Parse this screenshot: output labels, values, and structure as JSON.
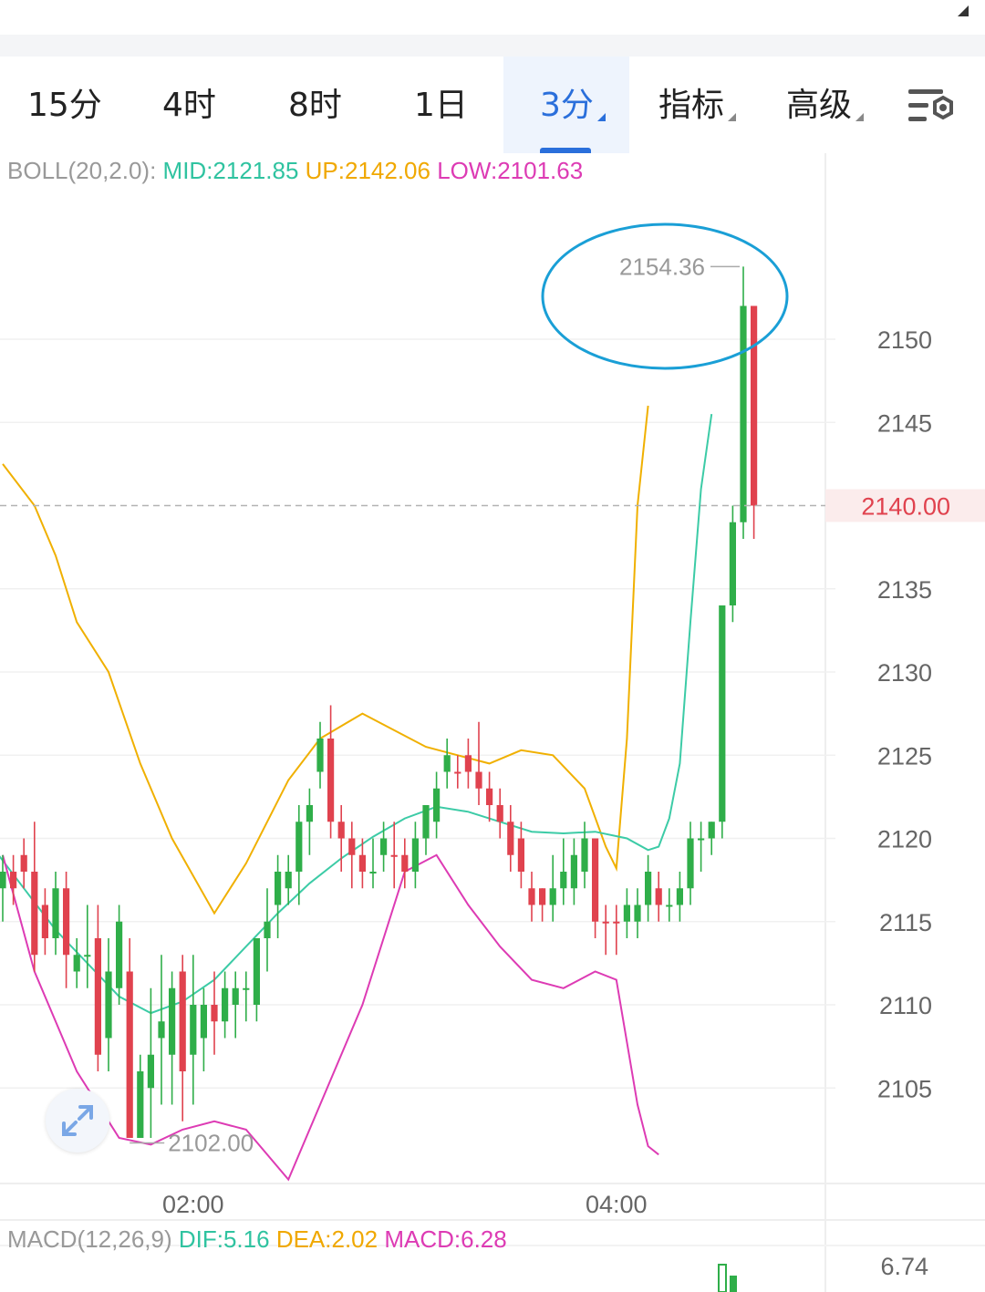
{
  "tabs": [
    {
      "label": "15分",
      "active": false,
      "dropdown": false
    },
    {
      "label": "4时",
      "active": false,
      "dropdown": false
    },
    {
      "label": "8时",
      "active": false,
      "dropdown": false
    },
    {
      "label": "1日",
      "active": false,
      "dropdown": false
    },
    {
      "label": "3分",
      "active": true,
      "dropdown": true
    },
    {
      "label": "指标",
      "active": false,
      "dropdown": true
    },
    {
      "label": "高级",
      "active": false,
      "dropdown": true
    }
  ],
  "boll": {
    "title": "BOLL(20,2.0):",
    "mid": "MID:2121.85",
    "up": "UP:2142.06",
    "low": "LOW:2101.63"
  },
  "macd": {
    "title": "MACD(12,26,9)",
    "dif": "DIF:5.16",
    "dea": "DEA:2.02",
    "macd": "MACD:6.28",
    "axis_label": "6.74"
  },
  "colors": {
    "up": "#2fae49",
    "down": "#e0424e",
    "mid": "#3ccba6",
    "upper": "#f0b000",
    "lower": "#dd3bb4",
    "accent": "#2a6fdb",
    "annotation": "#1a9fd6"
  },
  "chart_data": {
    "type": "candlestick",
    "y_ticks": [
      2150,
      2145,
      2135,
      2130,
      2125,
      2120,
      2115,
      2110,
      2105
    ],
    "x_ticks": [
      {
        "label": "02:00",
        "index": 18
      },
      {
        "label": "04:00",
        "index": 58
      }
    ],
    "current_price": "2140.00",
    "high_label": "2154.36",
    "low_label": "2102.00",
    "ylim": [
      2099.8,
      2156.8
    ],
    "candles": [
      [
        2117,
        2118,
        2119,
        2115,
        "up"
      ],
      [
        2118,
        2117,
        2119,
        2116,
        "down"
      ],
      [
        2119,
        2118,
        2120,
        2117,
        "down"
      ],
      [
        2118,
        2113,
        2121,
        2112,
        "down"
      ],
      [
        2116,
        2114,
        2117,
        2113,
        "down"
      ],
      [
        2114,
        2117,
        2118,
        2113,
        "up"
      ],
      [
        2117,
        2113,
        2118,
        2111,
        "down"
      ],
      [
        2112,
        2113,
        2114,
        2111,
        "up"
      ],
      [
        2113,
        2113,
        2116,
        2111,
        "up"
      ],
      [
        2114,
        2107,
        2116,
        2106,
        "down"
      ],
      [
        2108,
        2112,
        2114,
        2106,
        "up"
      ],
      [
        2111,
        2115,
        2116,
        2110,
        "up"
      ],
      [
        2112,
        2102,
        2114,
        2102,
        "down"
      ],
      [
        2102,
        2106,
        2107,
        2102,
        "up"
      ],
      [
        2105,
        2107,
        2111,
        2102,
        "up"
      ],
      [
        2108,
        2109,
        2113,
        2104,
        "up"
      ],
      [
        2107,
        2111,
        2112,
        2104,
        "up"
      ],
      [
        2112,
        2106,
        2113,
        2103,
        "down"
      ],
      [
        2107,
        2110,
        2113,
        2104,
        "up"
      ],
      [
        2108,
        2110,
        2111,
        2106,
        "up"
      ],
      [
        2110,
        2109,
        2112,
        2107,
        "down"
      ],
      [
        2109,
        2111,
        2112,
        2108,
        "up"
      ],
      [
        2110,
        2111,
        2112,
        2108,
        "up"
      ],
      [
        2111,
        2111,
        2112,
        2109,
        "up"
      ],
      [
        2110,
        2114,
        2114,
        2109,
        "up"
      ],
      [
        2114,
        2115,
        2117,
        2112,
        "up"
      ],
      [
        2116,
        2118,
        2119,
        2114,
        "up"
      ],
      [
        2117,
        2118,
        2119,
        2116,
        "up"
      ],
      [
        2118,
        2121,
        2122,
        2116,
        "up"
      ],
      [
        2121,
        2122,
        2123,
        2119,
        "up"
      ],
      [
        2124,
        2126,
        2127,
        2123,
        "up"
      ],
      [
        2126,
        2121,
        2128,
        2120,
        "down"
      ],
      [
        2121,
        2120,
        2122,
        2118,
        "down"
      ],
      [
        2120,
        2119,
        2121,
        2117,
        "down"
      ],
      [
        2119,
        2118,
        2120,
        2117,
        "down"
      ],
      [
        2118,
        2118,
        2120,
        2117,
        "up"
      ],
      [
        2119,
        2120,
        2121,
        2118,
        "up"
      ],
      [
        2119,
        2119,
        2121,
        2117,
        "down"
      ],
      [
        2119,
        2118,
        2120,
        2117,
        "down"
      ],
      [
        2118,
        2120,
        2121,
        2117,
        "up"
      ],
      [
        2120,
        2122,
        2122,
        2119,
        "up"
      ],
      [
        2121,
        2123,
        2124,
        2120,
        "up"
      ],
      [
        2124,
        2125,
        2126,
        2123,
        "up"
      ],
      [
        2124,
        2124,
        2125,
        2123,
        "down"
      ],
      [
        2125,
        2124,
        2126,
        2123,
        "down"
      ],
      [
        2124,
        2123,
        2127,
        2122,
        "down"
      ],
      [
        2123,
        2122,
        2124,
        2121,
        "down"
      ],
      [
        2122,
        2121,
        2123,
        2120,
        "down"
      ],
      [
        2121,
        2119,
        2122,
        2118,
        "down"
      ],
      [
        2120,
        2118,
        2121,
        2117,
        "down"
      ],
      [
        2117,
        2116,
        2118,
        2115,
        "down"
      ],
      [
        2117,
        2116,
        2117,
        2115,
        "down"
      ],
      [
        2116,
        2117,
        2119,
        2115,
        "up"
      ],
      [
        2117,
        2118,
        2120,
        2116,
        "up"
      ],
      [
        2117,
        2119,
        2120,
        2116,
        "up"
      ],
      [
        2118,
        2120,
        2121,
        2117,
        "up"
      ],
      [
        2120,
        2115,
        2120,
        2114,
        "down"
      ],
      [
        2115,
        2115,
        2116,
        2113,
        "down"
      ],
      [
        2115,
        2115,
        2116,
        2113,
        "down"
      ],
      [
        2116,
        2115,
        2117,
        2114,
        "up"
      ],
      [
        2115,
        2116,
        2117,
        2114,
        "up"
      ],
      [
        2116,
        2118,
        2119,
        2115,
        "up"
      ],
      [
        2117,
        2116,
        2118,
        2115,
        "down"
      ],
      [
        2116,
        2116,
        2117,
        2115,
        "up"
      ],
      [
        2116,
        2117,
        2118,
        2115,
        "up"
      ],
      [
        2117,
        2120,
        2121,
        2116,
        "up"
      ],
      [
        2120,
        2120,
        2121,
        2118,
        "up"
      ],
      [
        2120,
        2121,
        2121,
        2119,
        "up"
      ],
      [
        2121,
        2134,
        2134,
        2120,
        "up"
      ],
      [
        2134,
        2139,
        2140,
        2133,
        "up"
      ],
      [
        2139,
        2152,
        2154.36,
        2138,
        "up"
      ],
      [
        2152,
        2140,
        2152,
        2138,
        "down"
      ]
    ],
    "mid_band": [
      2119.5,
      2117,
      2114.5,
      2112.5,
      2110.5,
      2109.5,
      2110.2,
      2111.5,
      2113.5,
      2115.5,
      2117.3,
      2118.8,
      2120.1,
      2121.2,
      2121.9,
      2121.6,
      2121.0,
      2120.4,
      2120.3,
      2120.4,
      2120.0,
      2119.3,
      2119.5,
      2121.2,
      2124.5,
      2133,
      2141,
      2145.5
    ],
    "mid_band_x": [
      -1,
      2,
      5,
      8,
      11,
      14,
      17,
      20,
      23,
      26,
      29,
      32,
      35,
      38,
      41,
      44,
      47,
      50,
      53,
      56,
      59,
      61,
      62,
      63,
      64,
      65,
      66,
      67
    ],
    "upper_band": [
      2142.5,
      2140,
      2137,
      2133,
      2130,
      2124.5,
      2120,
      2115.5,
      2118.5,
      2123.5,
      2126,
      2127.5,
      2126.5,
      2125.5,
      2125,
      2124.5,
      2125.3,
      2125,
      2123,
      2119.5,
      2118.2,
      2126,
      2140,
      2146
    ],
    "upper_band_x": [
      0,
      3,
      5,
      7,
      10,
      13,
      16,
      20,
      23,
      27,
      30,
      34,
      37,
      40,
      43,
      46,
      49,
      52,
      55,
      57,
      58,
      59,
      60,
      61
    ],
    "lower_band": [
      2119,
      2112,
      2106,
      2102,
      2101.6,
      2102.5,
      2103,
      2102.5,
      2099.5,
      2104,
      2110,
      2118,
      2119,
      2116,
      2113.5,
      2111.5,
      2111,
      2112,
      2111.5,
      2104,
      2101.5,
      2101
    ],
    "lower_band_x": [
      0,
      3,
      7,
      11,
      14,
      17,
      20,
      23,
      27,
      30,
      34,
      38,
      41,
      44,
      47,
      50,
      53,
      56,
      58,
      60,
      61,
      62
    ]
  }
}
